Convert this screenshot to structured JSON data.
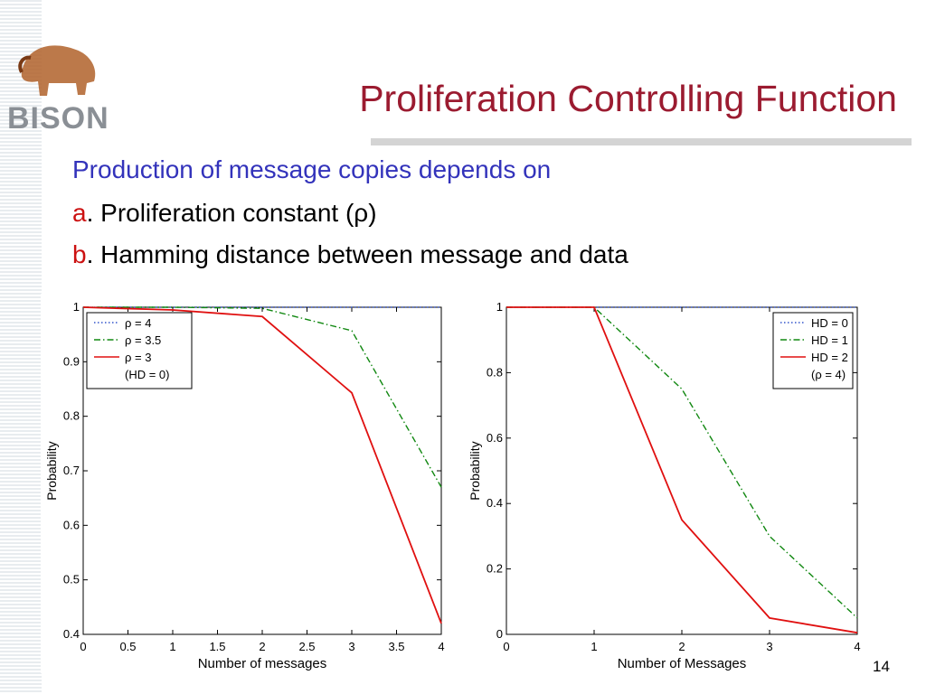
{
  "slide": {
    "logo": "BISON",
    "title": "Proliferation Controlling Function",
    "lead": "Production of message copies depends on",
    "items": [
      {
        "letter": "a",
        "text": ". Proliferation constant (ρ)"
      },
      {
        "letter": "b",
        "text": ". Hamming distance between message and data"
      }
    ],
    "page_number": "14"
  },
  "chart_data": [
    {
      "type": "line",
      "x_label": "Number of messages",
      "y_label": "Probability",
      "x": [
        0,
        1,
        2,
        3,
        4
      ],
      "xlim": [
        0,
        4
      ],
      "xticks": [
        0,
        0.5,
        1,
        1.5,
        2,
        2.5,
        3,
        3.5,
        4
      ],
      "ylim": [
        0.4,
        1
      ],
      "yticks": [
        0.4,
        0.5,
        0.6,
        0.7,
        0.8,
        0.9,
        1
      ],
      "legend": "upper left",
      "legend_note": "(HD = 0)",
      "series": [
        {
          "name": "ρ = 4",
          "color": "#3355cc",
          "line_style": "dotted",
          "values": [
            1,
            1,
            1,
            1,
            1
          ]
        },
        {
          "name": "ρ = 3.5",
          "color": "#118811",
          "line_style": "dashdot",
          "values": [
            1,
            1,
            0.998,
            0.957,
            0.67
          ]
        },
        {
          "name": "ρ = 3",
          "color": "#e01010",
          "line_style": "solid",
          "values": [
            1,
            0.995,
            0.983,
            0.843,
            0.42
          ]
        }
      ]
    },
    {
      "type": "line",
      "x_label": "Number of Messages",
      "y_label": "Probability",
      "x": [
        0,
        1,
        2,
        3,
        4
      ],
      "xlim": [
        0,
        4
      ],
      "xticks": [
        0,
        1,
        2,
        3,
        4
      ],
      "ylim": [
        0,
        1
      ],
      "yticks": [
        0,
        0.2,
        0.4,
        0.6,
        0.8,
        1
      ],
      "legend": "upper right",
      "legend_note": "(ρ = 4)",
      "series": [
        {
          "name": "HD = 0",
          "color": "#3355cc",
          "line_style": "dotted",
          "values": [
            1,
            1,
            1,
            1,
            1
          ]
        },
        {
          "name": "HD = 1",
          "color": "#118811",
          "line_style": "dashdot",
          "values": [
            1,
            1,
            0.75,
            0.3,
            0.05
          ]
        },
        {
          "name": "HD = 2",
          "color": "#e01010",
          "line_style": "solid",
          "values": [
            1,
            1,
            0.35,
            0.05,
            0.005
          ]
        }
      ]
    }
  ]
}
